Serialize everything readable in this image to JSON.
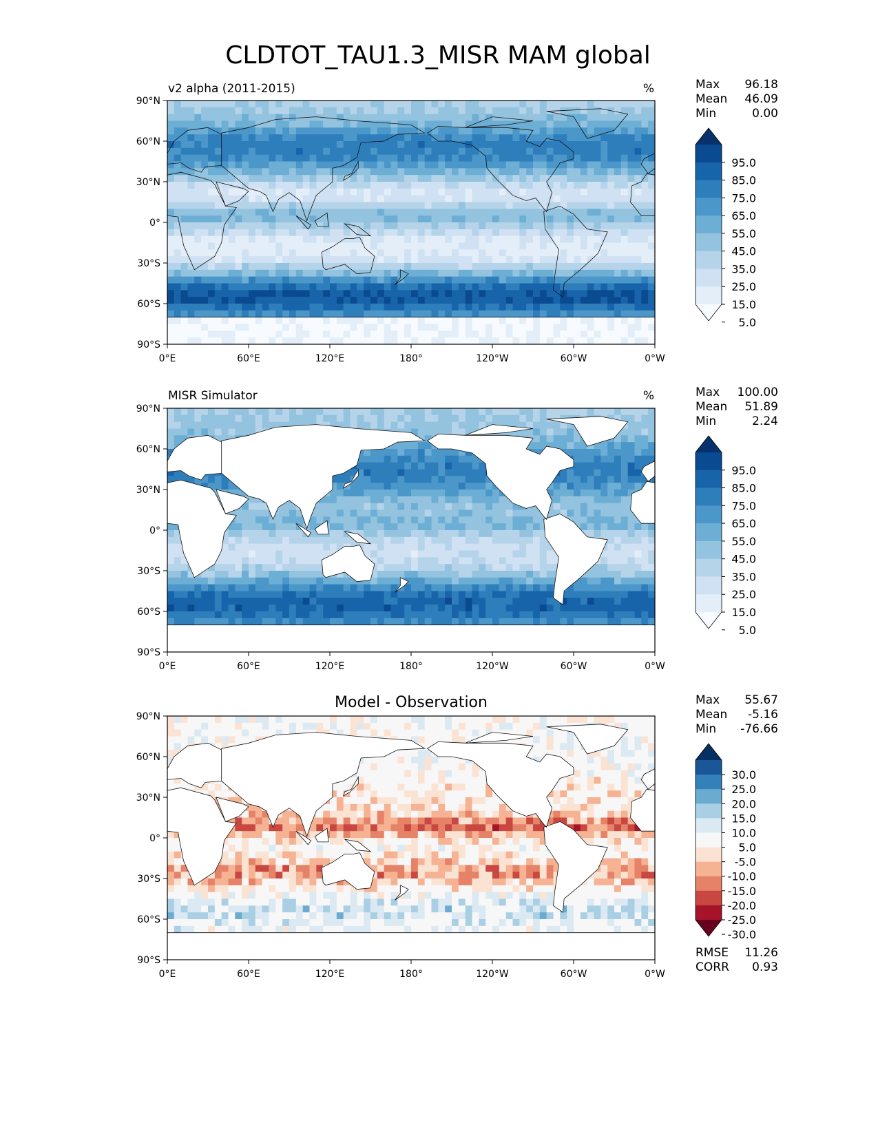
{
  "figure": {
    "title": "CLDTOT_TAU1.3_MISR MAM global"
  },
  "axes": {
    "lat_ticks": [
      "90°N",
      "60°N",
      "30°N",
      "0°",
      "30°S",
      "60°S",
      "90°S"
    ],
    "lon_ticks": [
      "0°E",
      "60°E",
      "120°E",
      "180°",
      "120°W",
      "60°W",
      "0°W"
    ]
  },
  "colors": {
    "sequential_blues": [
      "#f7fbff",
      "#e3eef9",
      "#cfe1f2",
      "#b5d4e9",
      "#93c3df",
      "#6daed5",
      "#4b97c9",
      "#2f7ebc",
      "#1864aa",
      "#0a4a90",
      "#08306b"
    ],
    "diverging": [
      "#67001f",
      "#a51429",
      "#c94741",
      "#e58267",
      "#f6b394",
      "#fbe3d4",
      "#f7f7f7",
      "#dbe9f2",
      "#a9cfe5",
      "#6aacd0",
      "#3480b9",
      "#1a5799",
      "#053061"
    ]
  },
  "chart_data": [
    {
      "type": "heatmap",
      "panel": "model",
      "title": "v2 alpha (2011-2015)",
      "units": "%",
      "stats": {
        "max_label": "Max",
        "max": "96.18",
        "mean_label": "Mean",
        "mean": "46.09",
        "min_label": "Min",
        "min": "0.00"
      },
      "colorbar": {
        "levels": [
          "95.0",
          "85.0",
          "75.0",
          "65.0",
          "55.0",
          "45.0",
          "35.0",
          "25.0",
          "15.0",
          "5.0"
        ],
        "extend": "both"
      },
      "xlim": [
        0,
        360
      ],
      "ylim": [
        -90,
        90
      ]
    },
    {
      "type": "heatmap",
      "panel": "observation",
      "title": "MISR Simulator",
      "units": "%",
      "stats": {
        "max_label": "Max",
        "max": "100.00",
        "mean_label": "Mean",
        "mean": "51.89",
        "min_label": "Min",
        "min": "2.24"
      },
      "colorbar": {
        "levels": [
          "95.0",
          "85.0",
          "75.0",
          "65.0",
          "55.0",
          "45.0",
          "35.0",
          "25.0",
          "15.0",
          "5.0"
        ],
        "extend": "both"
      },
      "xlim": [
        0,
        360
      ],
      "ylim": [
        -90,
        90
      ]
    },
    {
      "type": "heatmap",
      "panel": "difference",
      "title": "Model - Observation",
      "stats": {
        "max_label": "Max",
        "max": "55.67",
        "mean_label": "Mean",
        "mean": "-5.16",
        "min_label": "Min",
        "min": "-76.66"
      },
      "colorbar": {
        "levels": [
          "30.0",
          "25.0",
          "20.0",
          "15.0",
          "10.0",
          "5.0",
          "-5.0",
          "-10.0",
          "-15.0",
          "-20.0",
          "-25.0",
          "-30.0"
        ],
        "extend": "both"
      },
      "metrics": {
        "rmse_label": "RMSE",
        "rmse": "11.26",
        "corr_label": "CORR",
        "corr": "0.93"
      },
      "xlim": [
        0,
        360
      ],
      "ylim": [
        -90,
        90
      ]
    }
  ]
}
